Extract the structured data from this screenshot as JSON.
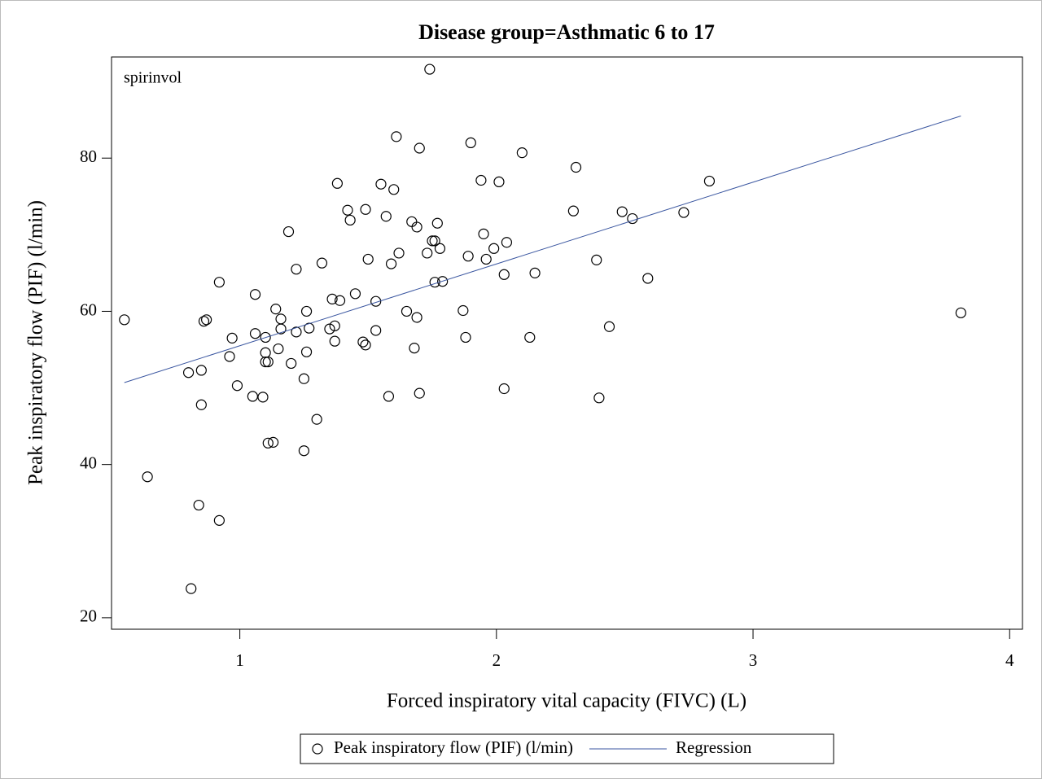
{
  "chart_data": {
    "type": "scatter",
    "title": "Disease group=Asthmatic 6 to 17",
    "annotation": "spirinvol",
    "x_label": "Forced inspiratory vital capacity (FIVC) (L)",
    "y_label": "Peak inspiratory flow (PIF) (l/min)",
    "xlim": [
      0.5,
      4.05
    ],
    "xticks": [
      1,
      2,
      3,
      4
    ],
    "ylim": [
      18.5,
      93.2
    ],
    "yticks": [
      20,
      40,
      60,
      80
    ],
    "grid": false,
    "legend": "bottom",
    "series": [
      {
        "name": "Peak inspiratory flow (PIF) (l/min)",
        "color": "#000000",
        "kind": "markers",
        "x": [
          0.55,
          0.64,
          0.8,
          0.81,
          0.84,
          0.85,
          0.85,
          0.86,
          0.87,
          0.92,
          0.92,
          0.96,
          0.97,
          0.99,
          1.05,
          1.06,
          1.06,
          1.09,
          1.1,
          1.1,
          1.1,
          1.11,
          1.11,
          1.13,
          1.14,
          1.15,
          1.16,
          1.16,
          1.19,
          1.2,
          1.22,
          1.22,
          1.25,
          1.25,
          1.26,
          1.26,
          1.27,
          1.3,
          1.32,
          1.35,
          1.36,
          1.37,
          1.37,
          1.38,
          1.39,
          1.42,
          1.43,
          1.45,
          1.48,
          1.49,
          1.49,
          1.5,
          1.53,
          1.53,
          1.55,
          1.57,
          1.58,
          1.59,
          1.6,
          1.61,
          1.62,
          1.65,
          1.67,
          1.68,
          1.69,
          1.69,
          1.7,
          1.7,
          1.73,
          1.75,
          1.76,
          1.76,
          1.77,
          1.78,
          1.79,
          1.87,
          1.88,
          1.89,
          1.9,
          1.94,
          1.95,
          1.96,
          1.99,
          2.01,
          2.03,
          2.03,
          2.04,
          2.13,
          2.15,
          2.1,
          2.3,
          2.31,
          2.39,
          2.4,
          2.44,
          2.49,
          2.53,
          2.59,
          2.73,
          2.83,
          3.81,
          1.74
        ],
        "values": [
          58.9,
          38.4,
          52.0,
          23.8,
          34.7,
          52.3,
          47.8,
          58.7,
          58.9,
          63.8,
          32.7,
          54.1,
          56.5,
          50.3,
          48.9,
          62.2,
          57.1,
          48.8,
          56.6,
          54.6,
          53.4,
          53.4,
          42.8,
          42.9,
          60.3,
          55.1,
          59.0,
          57.7,
          70.4,
          53.2,
          65.5,
          57.3,
          51.2,
          41.8,
          60.0,
          54.7,
          57.8,
          45.9,
          66.3,
          57.7,
          61.6,
          58.1,
          56.1,
          76.7,
          61.4,
          73.2,
          71.9,
          62.3,
          56.0,
          55.6,
          73.3,
          66.8,
          61.3,
          57.5,
          76.6,
          72.4,
          48.9,
          66.2,
          75.9,
          82.8,
          67.6,
          60.0,
          71.7,
          55.2,
          71.0,
          59.2,
          49.3,
          81.3,
          67.6,
          69.2,
          69.2,
          63.8,
          71.5,
          68.2,
          63.9,
          60.1,
          56.6,
          67.2,
          82.0,
          77.1,
          70.1,
          66.8,
          68.2,
          76.9,
          64.8,
          49.9,
          69.0,
          56.6,
          65.0,
          80.7,
          73.1,
          78.8,
          66.7,
          48.7,
          58.0,
          73.0,
          72.1,
          64.3,
          72.9,
          77.0,
          59.8,
          91.6
        ]
      },
      {
        "name": "Regression",
        "color": "#3a56a0",
        "kind": "line",
        "x": [
          0.55,
          3.81
        ],
        "values": [
          50.7,
          85.5
        ]
      }
    ]
  }
}
